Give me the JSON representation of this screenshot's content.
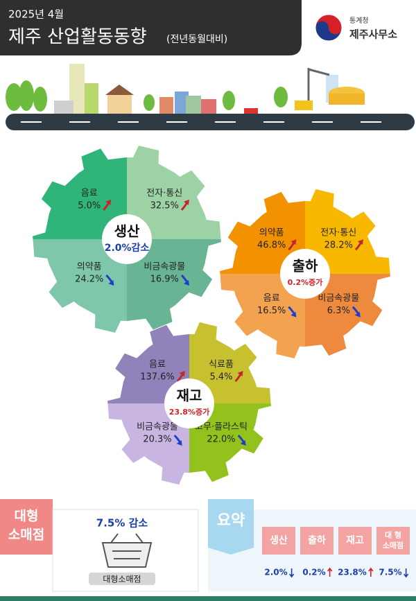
{
  "header": {
    "date": "2025년 4월",
    "title": "제주 산업활동동향",
    "subtitle": "(전년동월대비)",
    "org_top": "통계청",
    "org": "제주사무소"
  },
  "gears": [
    {
      "name": "생산",
      "summary": "2.0%감소",
      "items": [
        {
          "label": "음료",
          "value": "5.0%"
        },
        {
          "label": "전자·통신",
          "value": "32.5%"
        },
        {
          "label": "의약품",
          "value": "24.2%"
        },
        {
          "label": "비금속광물",
          "value": "16.9%"
        }
      ]
    },
    {
      "name": "출하",
      "summary": "0.2%증가",
      "items": [
        {
          "label": "의약품",
          "value": "46.8%"
        },
        {
          "label": "전자·통신",
          "value": "28.2%"
        },
        {
          "label": "음료",
          "value": "16.5%"
        },
        {
          "label": "비금속광물",
          "value": "6.3%"
        }
      ]
    },
    {
      "name": "재고",
      "summary": "23.8%증가",
      "items": [
        {
          "label": "음료",
          "value": "137.6%"
        },
        {
          "label": "식료품",
          "value": "5.4%"
        },
        {
          "label": "비금속광물",
          "value": "20.3%"
        },
        {
          "label": "고무·플라스틱",
          "value": "22.0%"
        }
      ]
    }
  ],
  "retail": {
    "label_lines": [
      "대형",
      "소매점"
    ],
    "value": "7.5% 감소",
    "caption": "대형소매점"
  },
  "summary": {
    "title": "요약",
    "items": [
      {
        "label_lines": [
          "생산"
        ],
        "value": "2.0%"
      },
      {
        "label_lines": [
          "출하"
        ],
        "value": "0.2%"
      },
      {
        "label_lines": [
          "재고"
        ],
        "value": "23.8%"
      },
      {
        "label_lines": [
          "대 형",
          "소매점"
        ],
        "value": "7.5%"
      }
    ]
  }
}
